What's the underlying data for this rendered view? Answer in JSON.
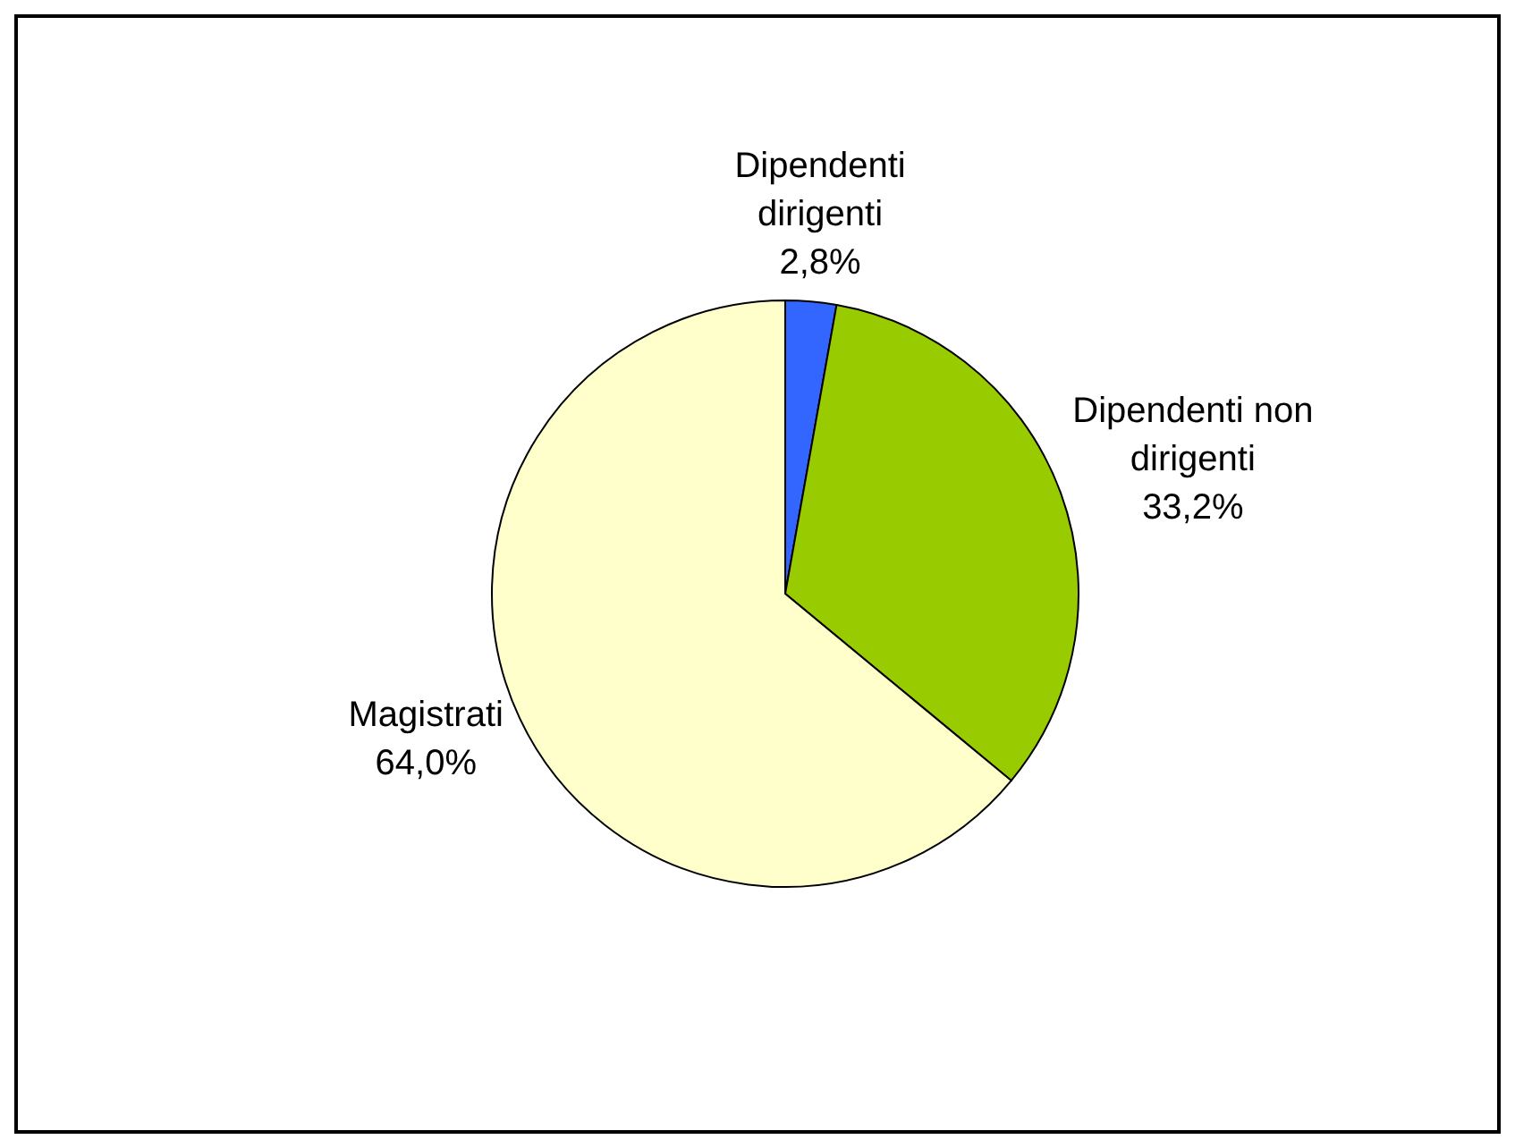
{
  "chart_data": {
    "type": "pie",
    "categories": [
      "Dipendenti dirigenti",
      "Dipendenti non dirigenti",
      "Magistrati"
    ],
    "values": [
      2.8,
      33.2,
      64.0
    ],
    "colors": [
      "#3366ff",
      "#99cc00",
      "#ffffcc"
    ],
    "value_labels": [
      "2,8%",
      "33,2%",
      "64,0%"
    ]
  }
}
